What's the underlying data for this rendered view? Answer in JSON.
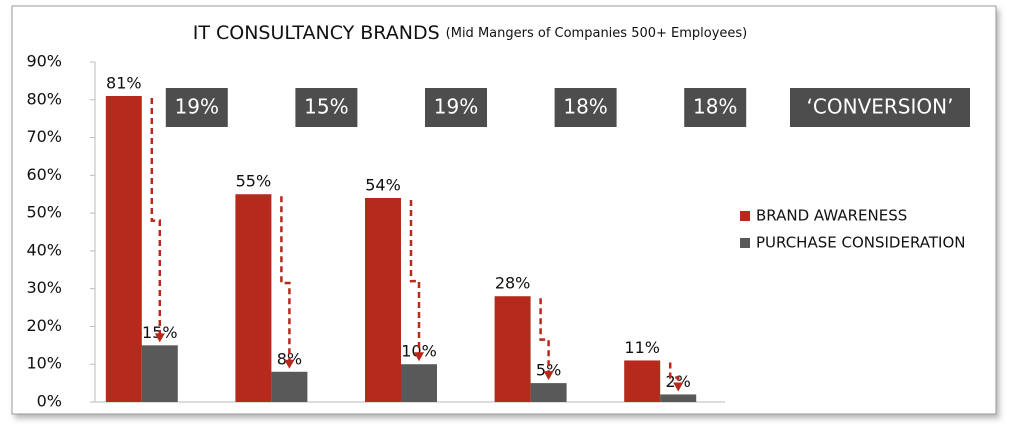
{
  "chart_data": {
    "type": "bar",
    "title": "IT CONSULTANCY BRANDS",
    "subtitle": "(Mid Mangers of Companies 500+ Employees)",
    "categories": [
      null,
      null,
      null,
      null,
      null
    ],
    "series": [
      {
        "name": "BRAND AWARENESS",
        "color": "#b52a1c",
        "values": [
          81,
          55,
          54,
          28,
          11
        ],
        "value_labels": [
          "81%",
          "55%",
          "54%",
          "28%",
          "11%"
        ]
      },
      {
        "name": "PURCHASE CONSIDERATION",
        "color": "#595959",
        "values": [
          15,
          8,
          10,
          5,
          2
        ],
        "value_labels": [
          "15%",
          "8%",
          "10%",
          "5%",
          "2%"
        ]
      }
    ],
    "annotations": [
      "19%",
      "15%",
      "19%",
      "18%",
      "18%",
      "‘CONVERSION’"
    ],
    "ylim": [
      0,
      90
    ],
    "yticks": [
      {
        "value": 0,
        "label": "0%"
      },
      {
        "value": 10,
        "label": "10%"
      },
      {
        "value": 20,
        "label": "20%"
      },
      {
        "value": 30,
        "label": "30%"
      },
      {
        "value": 40,
        "label": "40%"
      },
      {
        "value": 50,
        "label": "50%"
      },
      {
        "value": 60,
        "label": "60%"
      },
      {
        "value": 70,
        "label": "70%"
      },
      {
        "value": 80,
        "label": "80%"
      },
      {
        "value": 90,
        "label": "90%"
      }
    ],
    "legend": "right"
  }
}
